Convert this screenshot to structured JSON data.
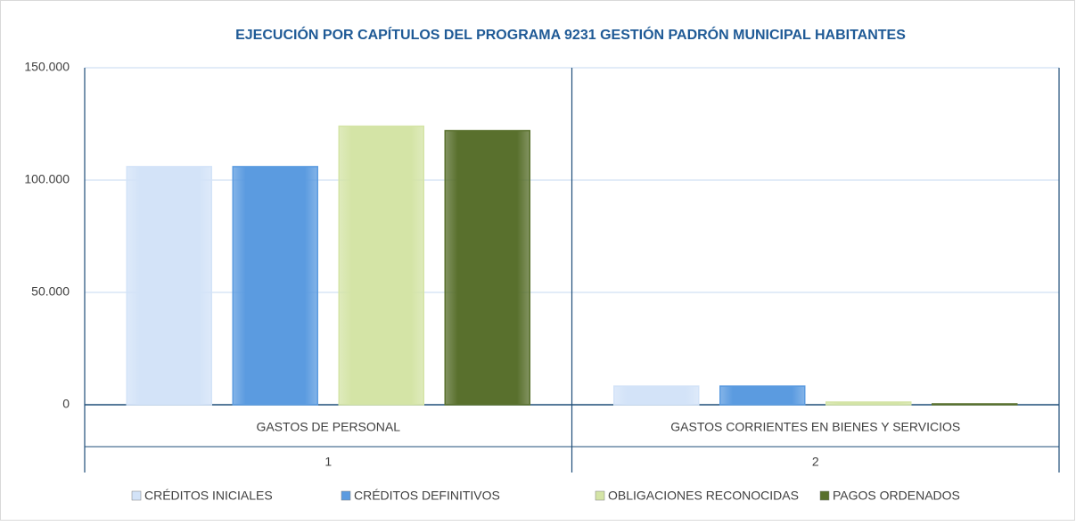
{
  "chart_data": {
    "type": "bar",
    "title": "EJECUCIÓN POR CAPÍTULOS DEL PROGRAMA 9231 GESTIÓN PADRÓN MUNICIPAL HABITANTES",
    "categories": [
      "GASTOS DE PERSONAL",
      "GASTOS CORRIENTES EN BIENES Y SERVICIOS"
    ],
    "category_codes": [
      "1",
      "2"
    ],
    "series": [
      {
        "name": "CRÉDITOS INICIALES",
        "color": "#d3e3f8",
        "values": [
          106000,
          8300
        ]
      },
      {
        "name": "CRÉDITOS DEFINITIVOS",
        "color": "#5b9be0",
        "values": [
          106000,
          8300
        ]
      },
      {
        "name": "OBLIGACIONES RECONOCIDAS",
        "color": "#d4e4a6",
        "values": [
          124000,
          1200
        ]
      },
      {
        "name": "PAGOS ORDENADOS",
        "color": "#59702d",
        "values": [
          122000,
          400
        ]
      }
    ],
    "ylim": [
      0,
      150000
    ],
    "yticks": [
      0,
      {
        "value": 50000,
        "label": "50.000"
      },
      {
        "value": 100000,
        "label": "100.000"
      },
      {
        "value": 150000,
        "label": "150.000"
      }
    ],
    "grid": true,
    "legend": "bottom"
  }
}
